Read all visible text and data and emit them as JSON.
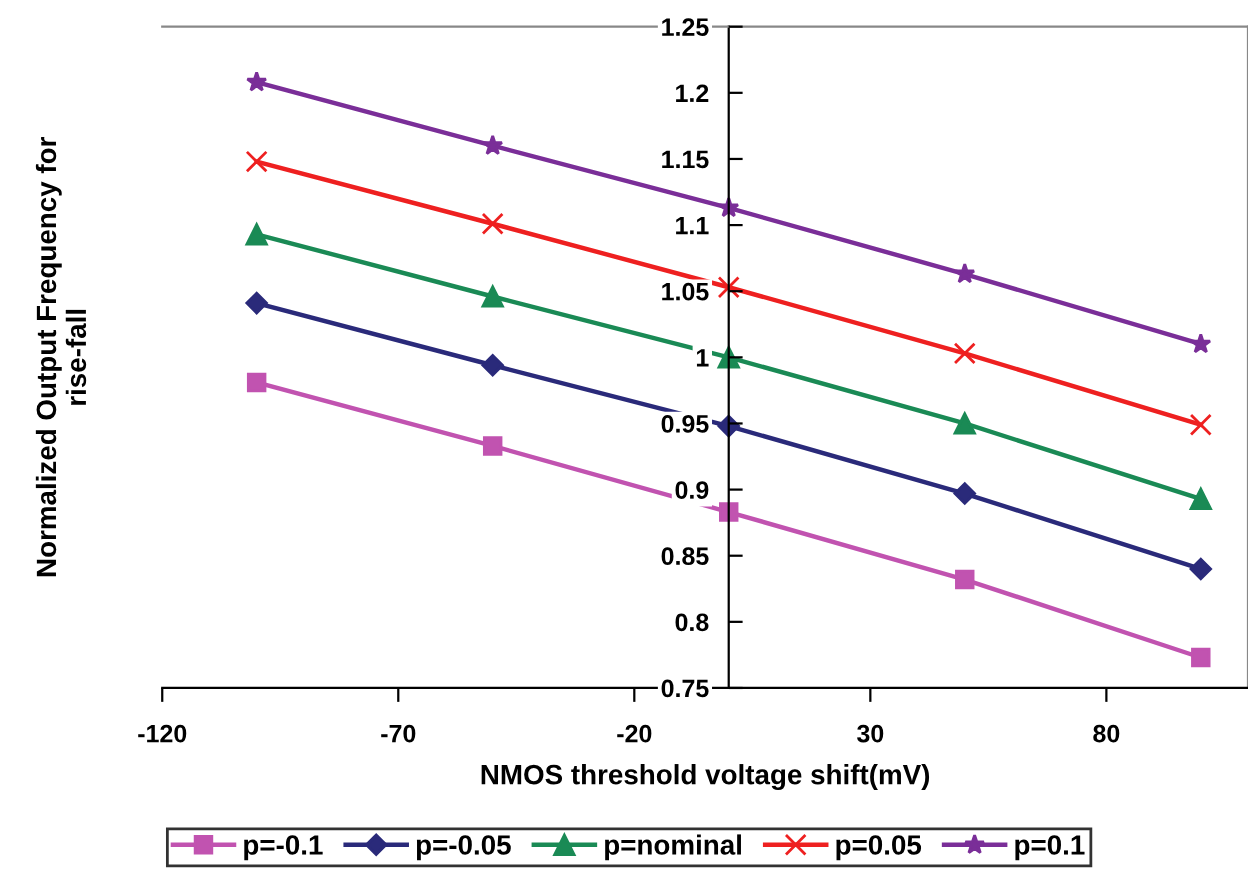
{
  "chart_data": {
    "type": "line",
    "xlabel": "NMOS threshold voltage shift(mV)",
    "ylabel": "Normalized Output Frequency for\nrise-fall",
    "x": [
      -100,
      -50,
      0,
      50,
      100
    ],
    "series": [
      {
        "name": "p=-0.1",
        "color": "#c153b0",
        "marker": "square",
        "values": [
          0.981,
          0.933,
          0.883,
          0.832,
          0.773
        ]
      },
      {
        "name": "p=-0.05",
        "color": "#2a2a7a",
        "marker": "diamond",
        "values": [
          1.041,
          0.994,
          0.948,
          0.897,
          0.84
        ]
      },
      {
        "name": "p=nominal",
        "color": "#1a8a55",
        "marker": "triangle",
        "values": [
          1.093,
          1.046,
          1.0,
          0.95,
          0.893
        ]
      },
      {
        "name": "p=0.05",
        "color": "#ee2020",
        "marker": "cross",
        "values": [
          1.148,
          1.101,
          1.053,
          1.003,
          0.949
        ]
      },
      {
        "name": "p=0.1",
        "color": "#7a2e98",
        "marker": "star",
        "values": [
          1.208,
          1.16,
          1.113,
          1.063,
          1.01
        ]
      }
    ],
    "xlim": [
      -120,
      110
    ],
    "xticks": [
      -120,
      -70,
      -20,
      30,
      80
    ],
    "ylim": [
      0.75,
      1.25
    ],
    "yticks": [
      0.75,
      0.8,
      0.85,
      0.9,
      0.95,
      1,
      1.05,
      1.1,
      1.15,
      1.2,
      1.25
    ],
    "grid": false,
    "legend": "bottom",
    "line_style": "solid"
  }
}
